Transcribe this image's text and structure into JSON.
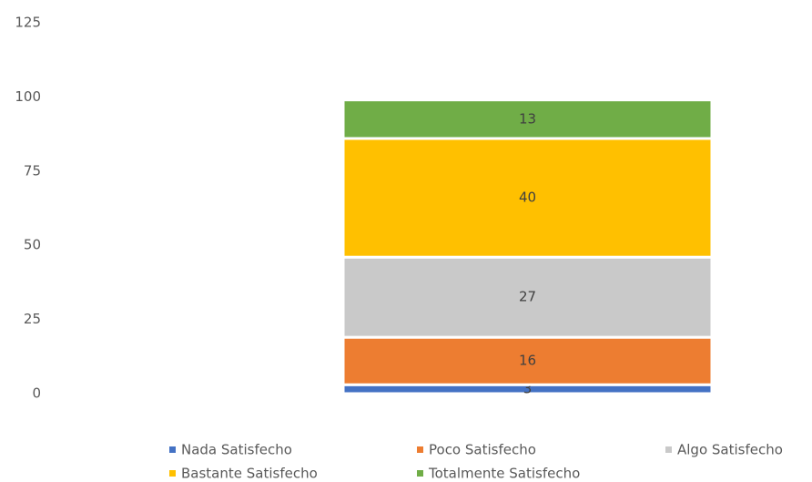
{
  "chart_data": {
    "type": "stacked_bar",
    "categories": [
      null
    ],
    "series": [
      {
        "name": "Nada Satisfecho",
        "color": "#4472c4",
        "values": [
          3
        ]
      },
      {
        "name": "Poco Satisfecho",
        "color": "#ed7d31",
        "values": [
          16
        ]
      },
      {
        "name": "Algo Satisfecho",
        "color": "#c9c9c9",
        "values": [
          27
        ]
      },
      {
        "name": "Bastante Satisfecho",
        "color": "#ffc000",
        "values": [
          40
        ]
      },
      {
        "name": "Totalmente Satisfecho",
        "color": "#70ad47",
        "values": [
          13
        ]
      }
    ],
    "ylim": [
      0,
      125
    ],
    "yticks": [
      0,
      25,
      50,
      75,
      100,
      125
    ],
    "grid": false,
    "legend": "bottom"
  }
}
